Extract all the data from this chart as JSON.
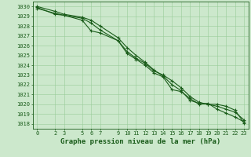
{
  "title": "",
  "xlabel": "Graphe pression niveau de la mer (hPa)",
  "ylabel": "",
  "xlim": [
    -0.5,
    23.5
  ],
  "ylim": [
    1017.5,
    1030.5
  ],
  "yticks": [
    1018,
    1019,
    1020,
    1021,
    1022,
    1023,
    1024,
    1025,
    1026,
    1027,
    1028,
    1029,
    1030
  ],
  "xticks": [
    0,
    2,
    3,
    5,
    6,
    7,
    9,
    10,
    11,
    12,
    13,
    14,
    15,
    16,
    17,
    18,
    19,
    20,
    21,
    22,
    23
  ],
  "bg_color": "#cce8cc",
  "line_color": "#1a5c1a",
  "grid_color": "#99cc99",
  "line1_x": [
    0,
    2,
    3,
    5,
    6,
    7,
    9,
    10,
    11,
    12,
    13,
    14,
    15,
    16,
    17,
    18,
    19,
    20,
    21,
    22,
    23
  ],
  "line1_y": [
    1029.9,
    1029.2,
    1029.1,
    1028.6,
    1027.5,
    1027.3,
    1026.5,
    1025.2,
    1024.6,
    1024.0,
    1023.2,
    1022.8,
    1021.5,
    1021.3,
    1020.6,
    1020.0,
    1020.1,
    1019.5,
    1019.1,
    1018.7,
    1018.2
  ],
  "line2_x": [
    0,
    2,
    3,
    5,
    6,
    7,
    9,
    10,
    11,
    12,
    13,
    14,
    15,
    16,
    17,
    18,
    19,
    20,
    21,
    22,
    23
  ],
  "line2_y": [
    1029.8,
    1029.3,
    1029.1,
    1028.8,
    1028.3,
    1027.6,
    1026.5,
    1025.4,
    1024.7,
    1024.2,
    1023.4,
    1023.0,
    1022.4,
    1021.7,
    1020.8,
    1020.2,
    1020.0,
    1019.8,
    1019.5,
    1019.2,
    1018.4
  ],
  "line3_x": [
    0,
    2,
    3,
    5,
    6,
    7,
    9,
    10,
    11,
    12,
    13,
    14,
    15,
    16,
    17,
    18,
    19,
    20,
    21,
    22,
    23
  ],
  "line3_y": [
    1030.0,
    1029.5,
    1029.2,
    1028.9,
    1028.6,
    1028.0,
    1026.8,
    1025.8,
    1025.0,
    1024.3,
    1023.5,
    1022.9,
    1022.0,
    1021.4,
    1020.4,
    1020.1,
    1020.0,
    1020.0,
    1019.8,
    1019.4,
    1018.1
  ],
  "marker": "+",
  "markersize": 3,
  "linewidth": 0.8,
  "xlabel_fontsize": 6.5,
  "tick_fontsize": 5,
  "xlabel_bold": true
}
